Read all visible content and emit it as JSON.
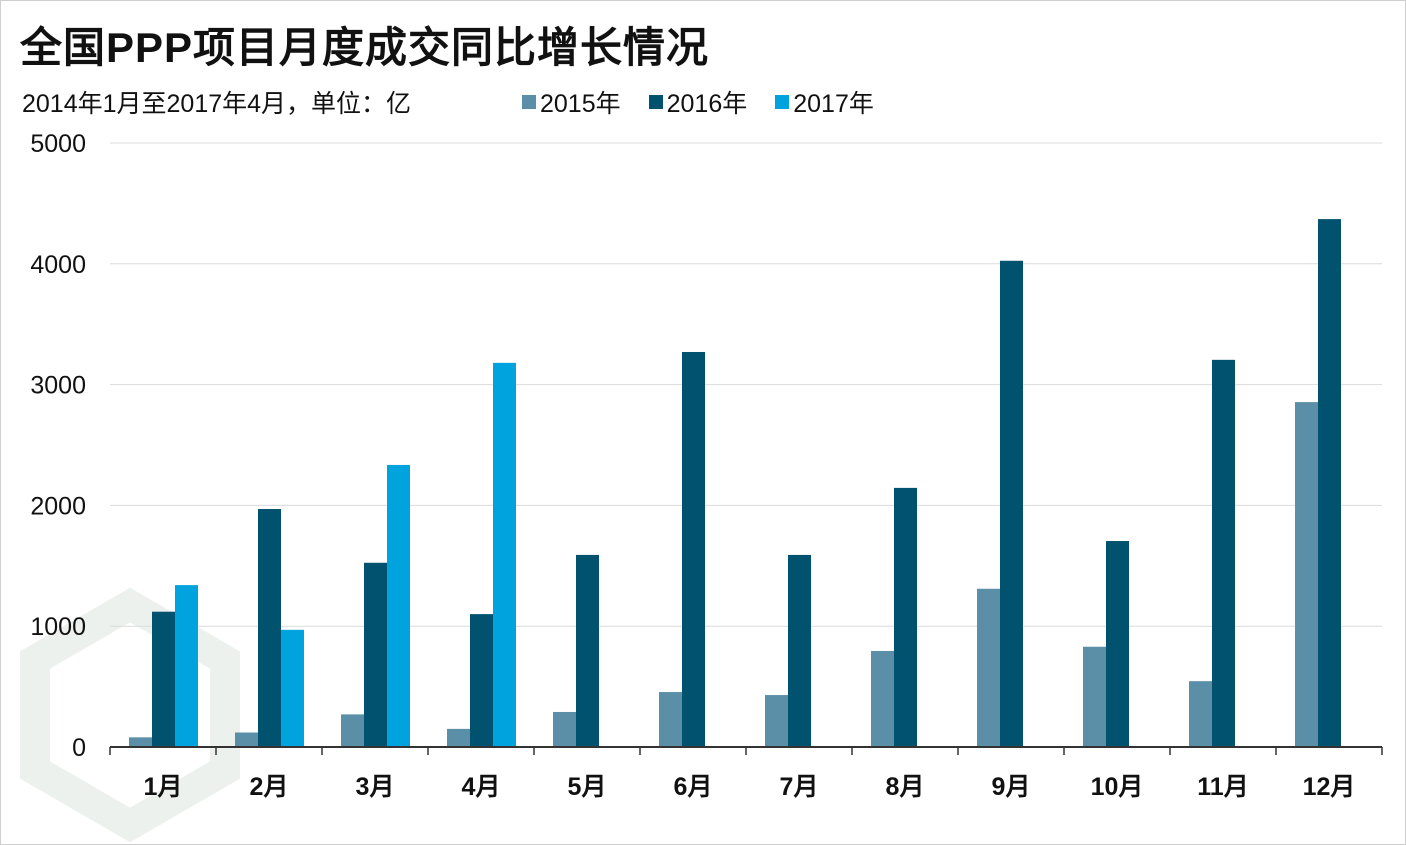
{
  "title": "全国PPP项目月度成交同比增长情况",
  "subtitle": "2014年1月至2017年4月，单位：亿",
  "chart_data": {
    "type": "bar",
    "title": "全国PPP项目月度成交同比增长情况",
    "subtitle": "2014年1月至2017年4月，单位：亿",
    "categories": [
      "1月",
      "2月",
      "3月",
      "4月",
      "5月",
      "6月",
      "7月",
      "8月",
      "9月",
      "10月",
      "11月",
      "12月"
    ],
    "series": [
      {
        "name": "2015年",
        "color": "#5b8fa8",
        "values": [
          80,
          120,
          270,
          150,
          290,
          455,
          430,
          795,
          1310,
          830,
          545,
          2855
        ]
      },
      {
        "name": "2016年",
        "color": "#00526e",
        "values": [
          1120,
          1970,
          1525,
          1100,
          1590,
          3270,
          1590,
          2145,
          4025,
          1705,
          3205,
          4370
        ]
      },
      {
        "name": "2017年",
        "color": "#00a3dd",
        "values": [
          1340,
          970,
          2335,
          3180,
          null,
          null,
          null,
          null,
          null,
          null,
          null,
          null
        ]
      }
    ],
    "ylim": [
      0,
      5000
    ],
    "yticks": [
      0,
      1000,
      2000,
      3000,
      4000,
      5000
    ],
    "grid": true,
    "legend": "top"
  }
}
